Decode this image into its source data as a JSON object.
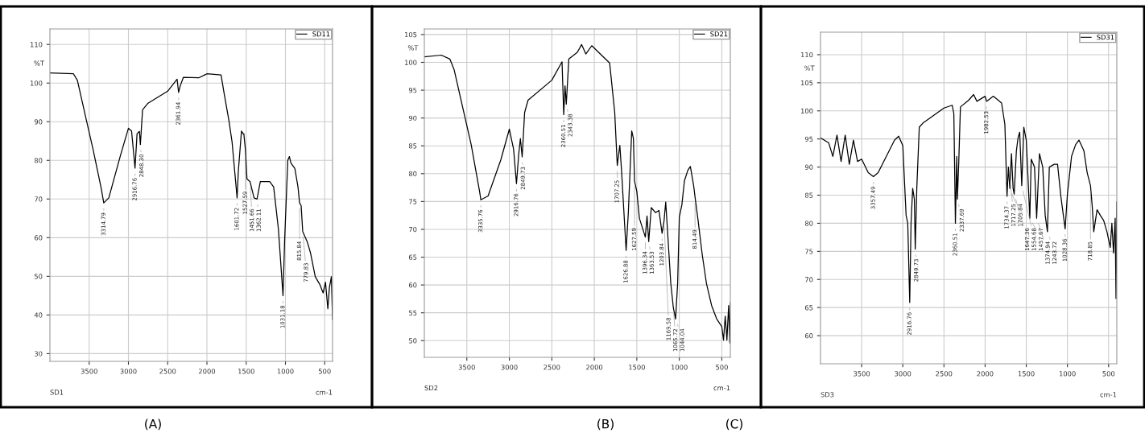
{
  "chart_data": [
    {
      "type": "line",
      "xlabel": "cm-1",
      "ylabel": "%T",
      "xlim": [
        4000,
        400
      ],
      "ylim": [
        28,
        114
      ],
      "xticks": [
        3500,
        3000,
        2500,
        2000,
        1500,
        1000,
        500
      ],
      "yticks": [
        30,
        40,
        50,
        60,
        70,
        80,
        90,
        100,
        110
      ],
      "grid": true,
      "legend": "top right",
      "series": [
        {
          "name": "SD11",
          "color": "#000000",
          "x": [
            4000,
            3700,
            3650,
            3550,
            3450,
            3350,
            3314,
            3250,
            3100,
            3000,
            2960,
            2916,
            2890,
            2860,
            2848,
            2820,
            2750,
            2500,
            2380,
            2361,
            2340,
            2300,
            2100,
            2000,
            1820,
            1780,
            1720,
            1680,
            1616,
            1600,
            1560,
            1540,
            1530,
            1510,
            1490,
            1451,
            1400,
            1362,
            1320,
            1200,
            1150,
            1090,
            1031,
            1010,
            970,
            950,
            930,
            880,
            840,
            820,
            800,
            780,
            720,
            680,
            620,
            560,
            520,
            490,
            460,
            440,
            415,
            400
          ],
          "values": [
            102.6,
            102.4,
            100.7,
            91.7,
            82.8,
            73.1,
            69,
            70.3,
            81.4,
            88.3,
            87.6,
            78,
            86.9,
            87.5,
            84.1,
            93.1,
            94.8,
            97.9,
            101,
            97.6,
            99.3,
            101.5,
            101.4,
            102.4,
            102.1,
            97.2,
            90.3,
            84.8,
            70.3,
            77.2,
            87.6,
            86.9,
            86.9,
            82.8,
            75.2,
            74.5,
            70.3,
            70,
            74.5,
            74.5,
            73.1,
            62.3,
            45,
            59.5,
            80,
            81,
            79.3,
            77.9,
            73.1,
            69,
            68.3,
            61.6,
            58.8,
            56,
            49.9,
            47.8,
            45.7,
            48.5,
            41.6,
            47.1,
            49.9,
            38.8
          ]
        }
      ],
      "annotations": [
        "SD1",
        "(A)",
        {
          "text": "3314.79",
          "x": 3314,
          "y": 69
        },
        {
          "text": "2916.76",
          "x": 2916,
          "y": 78
        },
        {
          "text": "2848.30",
          "x": 2848,
          "y": 84.1
        },
        {
          "text": "2361.94",
          "x": 2361,
          "y": 97.6
        },
        {
          "text": "1601.72",
          "x": 1616,
          "y": 70.3
        },
        {
          "text": "1527.59",
          "x": 1510,
          "y": 82.8
        },
        {
          "text": "1451.66",
          "x": 1451,
          "y": 74.5
        },
        {
          "text": "1362.11",
          "x": 1362,
          "y": 70
        },
        {
          "text": "1031.18",
          "x": 1031,
          "y": 45
        },
        {
          "text": "815.84",
          "x": 820,
          "y": 69
        },
        {
          "text": "779.83",
          "x": 780,
          "y": 61.6
        }
      ]
    },
    {
      "type": "line",
      "xlabel": "cm-1",
      "ylabel": "%T",
      "xlim": [
        4000,
        400
      ],
      "ylim": [
        47,
        106
      ],
      "xticks": [
        3500,
        3000,
        2500,
        2000,
        1500,
        1000,
        500
      ],
      "yticks": [
        50,
        55,
        60,
        65,
        70,
        75,
        80,
        85,
        90,
        95,
        100,
        105
      ],
      "grid": true,
      "legend": "top right",
      "series": [
        {
          "name": "SD21",
          "color": "#000000",
          "x": [
            4000,
            3800,
            3700,
            3650,
            3550,
            3450,
            3350,
            3335,
            3250,
            3100,
            3000,
            2950,
            2916,
            2890,
            2870,
            2849,
            2820,
            2780,
            2500,
            2380,
            2360,
            2345,
            2330,
            2300,
            2200,
            2150,
            2100,
            2030,
            1950,
            1820,
            1760,
            1730,
            1700,
            1680,
            1626,
            1600,
            1560,
            1540,
            1527,
            1500,
            1470,
            1400,
            1380,
            1360,
            1330,
            1280,
            1240,
            1203,
            1180,
            1160,
            1100,
            1070,
            1044,
            1020,
            1000,
            970,
            940,
            900,
            870,
            830,
            815,
            780,
            730,
            680,
            620,
            560,
            500,
            480,
            460,
            440,
            420,
            405,
            400
          ],
          "values": [
            101,
            101.3,
            100.6,
            98.7,
            92,
            85.3,
            76.8,
            75.3,
            76,
            82.5,
            88,
            84.4,
            78.2,
            83.4,
            86.3,
            83,
            91,
            93.2,
            96.8,
            100.1,
            90.6,
            95.8,
            92.5,
            100.6,
            101.8,
            103.2,
            101.5,
            103,
            101.8,
            99.9,
            91,
            81.5,
            85.1,
            80.6,
            66.2,
            73,
            87.7,
            86.3,
            78.7,
            76.8,
            72,
            68.6,
            72.4,
            67.8,
            73.9,
            73,
            73.4,
            69.3,
            71.5,
            74.9,
            60.2,
            55.9,
            53.9,
            60.2,
            72.2,
            74.4,
            78.7,
            80.6,
            81.3,
            77.7,
            75.8,
            71.7,
            65.4,
            60.2,
            56.3,
            53.9,
            52.5,
            50.1,
            54.4,
            50.1,
            56.3,
            49.6,
            56.8
          ]
        }
      ],
      "annotations": [
        "SD2",
        "(B)",
        {
          "text": "3335.76",
          "x": 3335,
          "y": 75.3
        },
        {
          "text": "2916.76",
          "x": 2916,
          "y": 78.2
        },
        {
          "text": "2849.73",
          "x": 2849,
          "y": 83
        },
        {
          "text": "2360.51",
          "x": 2360,
          "y": 90.6
        },
        {
          "text": "2343.38",
          "x": 2330,
          "y": 92.5
        },
        {
          "text": "1707.25",
          "x": 1730,
          "y": 81.5
        },
        {
          "text": "1627.59",
          "x": 1527,
          "y": 78.7
        },
        {
          "text": "1626.88",
          "x": 1626,
          "y": 66.2
        },
        {
          "text": "1396.34",
          "x": 1400,
          "y": 68.6
        },
        {
          "text": "1363.53",
          "x": 1360,
          "y": 67.8
        },
        {
          "text": "1203.84",
          "x": 1203,
          "y": 69.3
        },
        {
          "text": "1169.58",
          "x": 1180,
          "y": 71.5
        },
        {
          "text": "1065.72",
          "x": 1070,
          "y": 55.9
        },
        {
          "text": "1044.04",
          "x": 1044,
          "y": 53.9
        },
        {
          "text": "814.49",
          "x": 815,
          "y": 75.8
        }
      ]
    },
    {
      "type": "line",
      "xlabel": "cm-1",
      "ylabel": "%T",
      "xlim": [
        4000,
        400
      ],
      "ylim": [
        55,
        114
      ],
      "xticks": [
        3500,
        3000,
        2500,
        2000,
        1500,
        1000,
        500
      ],
      "yticks": [
        60,
        65,
        70,
        75,
        80,
        85,
        90,
        95,
        100,
        105,
        110
      ],
      "grid": true,
      "legend": "top right",
      "series": [
        {
          "name": "SD31",
          "color": "#000000",
          "x": [
            4000,
            3900,
            3850,
            3800,
            3750,
            3700,
            3650,
            3600,
            3550,
            3500,
            3420,
            3357,
            3300,
            3200,
            3100,
            3050,
            3000,
            2960,
            2940,
            2916,
            2900,
            2880,
            2860,
            2849,
            2830,
            2800,
            2750,
            2500,
            2400,
            2380,
            2361,
            2345,
            2337,
            2320,
            2300,
            2200,
            2140,
            2100,
            2000,
            1982,
            1900,
            1800,
            1760,
            1734,
            1717,
            1700,
            1680,
            1660,
            1647,
            1620,
            1600,
            1580,
            1555,
            1530,
            1500,
            1457,
            1440,
            1400,
            1374,
            1340,
            1300,
            1270,
            1243,
            1220,
            1160,
            1120,
            1080,
            1028,
            1000,
            950,
            900,
            860,
            800,
            760,
            720,
            700,
            680,
            640,
            600,
            560,
            520,
            480,
            460,
            440,
            420,
            410,
            400
          ],
          "values": [
            95.2,
            94.3,
            91.9,
            95.7,
            91,
            95.7,
            90.5,
            94.8,
            91,
            91.4,
            89,
            88.3,
            89,
            91.9,
            94.8,
            95.5,
            93.8,
            81.4,
            80,
            65.9,
            80,
            86.2,
            84.3,
            75.4,
            86.2,
            97.1,
            97.9,
            100.5,
            101,
            99.5,
            80,
            91.9,
            84.3,
            91,
            100.7,
            101.9,
            102.9,
            101.7,
            102.6,
            101.7,
            102.6,
            101.4,
            97.6,
            84.8,
            90,
            86.2,
            92.4,
            86.2,
            85.2,
            92.9,
            95.2,
            96.2,
            86.7,
            97.1,
            94.8,
            80.9,
            91.4,
            90,
            80.9,
            92.4,
            90,
            81.4,
            78.5,
            90,
            90.5,
            90.5,
            84.8,
            79,
            85.2,
            91.9,
            94,
            94.8,
            92.9,
            89,
            86.7,
            83.3,
            78.5,
            82.4,
            81.4,
            80.5,
            78.5,
            75.7,
            80,
            74.7,
            80.9,
            66.6,
            83.8
          ]
        }
      ],
      "annotations": [
        "SD3",
        "(C)",
        {
          "text": "3357.49",
          "x": 3357,
          "y": 88.3
        },
        {
          "text": "2916.76",
          "x": 2916,
          "y": 65.9
        },
        {
          "text": "2849.73",
          "x": 2849,
          "y": 75.4
        },
        {
          "text": "2360.51",
          "x": 2361,
          "y": 80
        },
        {
          "text": "2337.69",
          "x": 2337,
          "y": 84.3
        },
        {
          "text": "1982.53",
          "x": 1982,
          "y": 101.7
        },
        {
          "text": "1734.37",
          "x": 1734,
          "y": 84.8
        },
        {
          "text": "1717.25",
          "x": 1717,
          "y": 90
        },
        {
          "text": "1705.84",
          "x": 1700,
          "y": 86.2
        },
        {
          "text": "1647.36",
          "x": 1647,
          "y": 85.2
        },
        {
          "text": "1554.68",
          "x": 1555,
          "y": 86.7
        },
        {
          "text": "1457.67",
          "x": 1457,
          "y": 80.9
        },
        {
          "text": "1374.94",
          "x": 1374,
          "y": 80.9
        },
        {
          "text": "1243.72",
          "x": 1243,
          "y": 78.5
        },
        {
          "text": "1028.36",
          "x": 1028,
          "y": 79
        },
        {
          "text": "718.85",
          "x": 720,
          "y": 86.7
        }
      ]
    }
  ]
}
